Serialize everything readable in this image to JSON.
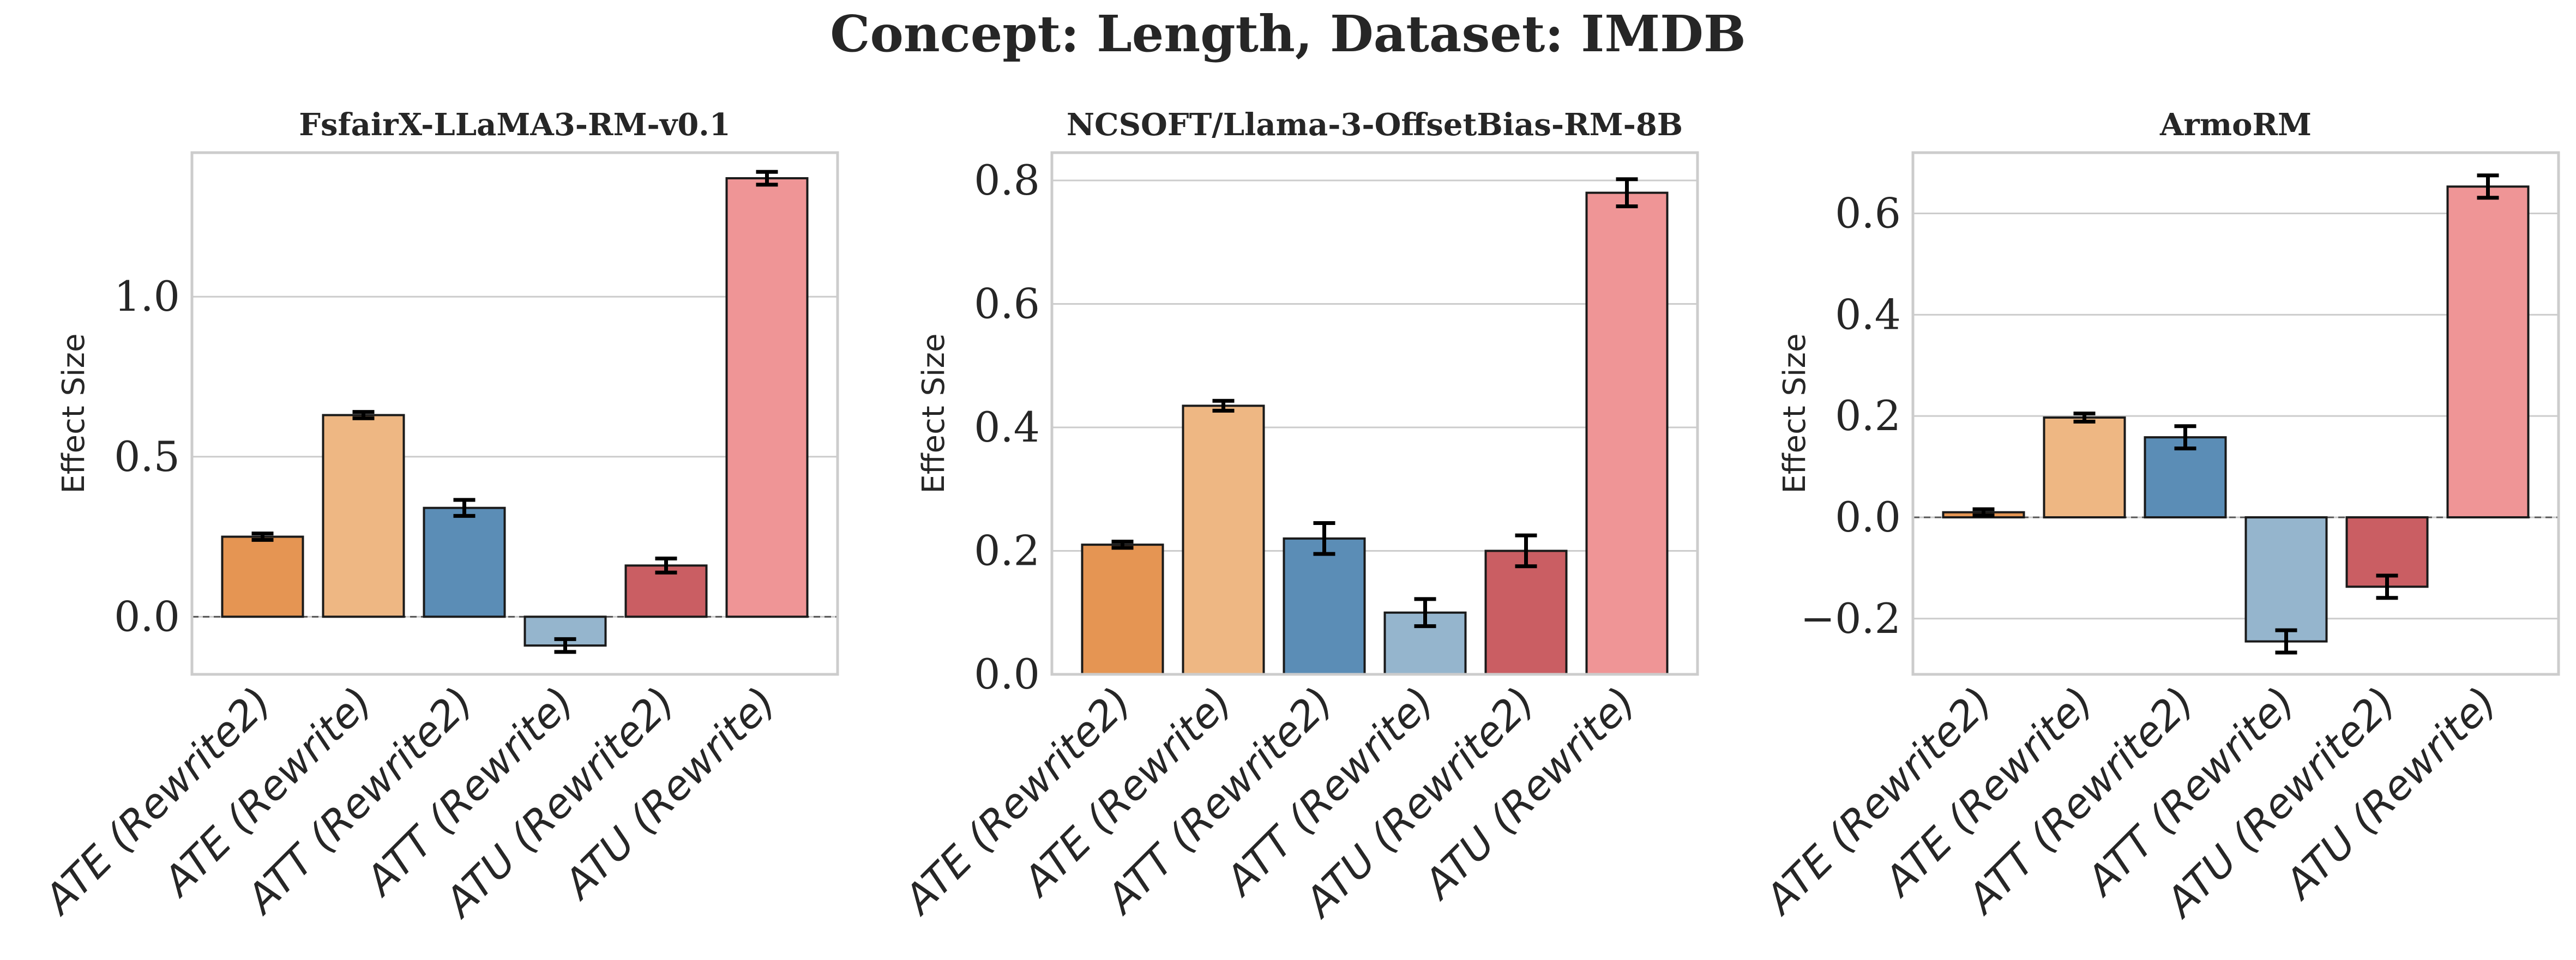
{
  "suptitle": "Concept: Length, Dataset: IMDB",
  "colors": {
    "ATE (Rewrite2)": "#e59553",
    "ATE (Rewrite)": "#eeb783",
    "ATT (Rewrite2)": "#5b8db6",
    "ATT (Rewrite)": "#95b5cd",
    "ATU (Rewrite2)": "#ca5e63",
    "ATU (Rewrite)": "#ef9596"
  },
  "chart_data": [
    {
      "type": "bar",
      "title": "FsfairX-LLaMA3-RM-v0.1",
      "ylabel": "Effect Size",
      "xlabel": "",
      "categories": [
        "ATE (Rewrite2)",
        "ATE (Rewrite)",
        "ATT (Rewrite2)",
        "ATT (Rewrite)",
        "ATU (Rewrite2)",
        "ATU (Rewrite)"
      ],
      "values": [
        0.25,
        0.63,
        0.34,
        -0.09,
        0.16,
        1.37
      ],
      "errors": [
        0.01,
        0.01,
        0.025,
        0.02,
        0.022,
        0.02
      ],
      "ylim": [
        -0.18,
        1.45
      ],
      "yticks": [
        0.0,
        0.5,
        1.0
      ],
      "ytick_labels": [
        "0.0",
        "0.5",
        "1.0"
      ],
      "baseline_dashed": true,
      "grid": true
    },
    {
      "type": "bar",
      "title": "NCSOFT/Llama-3-OffsetBias-RM-8B",
      "ylabel": "Effect Size",
      "xlabel": "",
      "categories": [
        "ATE (Rewrite2)",
        "ATE (Rewrite)",
        "ATT (Rewrite2)",
        "ATT (Rewrite)",
        "ATU (Rewrite2)",
        "ATU (Rewrite)"
      ],
      "values": [
        0.21,
        0.435,
        0.22,
        0.1,
        0.2,
        0.78
      ],
      "errors": [
        0.005,
        0.008,
        0.025,
        0.022,
        0.025,
        0.022
      ],
      "ylim": [
        0.0,
        0.845
      ],
      "yticks": [
        0.0,
        0.2,
        0.4,
        0.6,
        0.8
      ],
      "ytick_labels": [
        "0.0",
        "0.2",
        "0.4",
        "0.6",
        "0.8"
      ],
      "baseline_dashed": false,
      "grid": true
    },
    {
      "type": "bar",
      "title": "ArmoRM",
      "ylabel": "Effect Size",
      "xlabel": "",
      "categories": [
        "ATE (Rewrite2)",
        "ATE (Rewrite)",
        "ATT (Rewrite2)",
        "ATT (Rewrite)",
        "ATU (Rewrite2)",
        "ATU (Rewrite)"
      ],
      "values": [
        0.01,
        0.197,
        0.158,
        -0.245,
        -0.137,
        0.653
      ],
      "errors": [
        0.006,
        0.008,
        0.022,
        0.022,
        0.022,
        0.022
      ],
      "ylim": [
        -0.31,
        0.72
      ],
      "yticks": [
        -0.2,
        0.0,
        0.2,
        0.4,
        0.6
      ],
      "ytick_labels": [
        "−0.2",
        "0.0",
        "0.2",
        "0.4",
        "0.6"
      ],
      "baseline_dashed": true,
      "grid": true
    }
  ]
}
